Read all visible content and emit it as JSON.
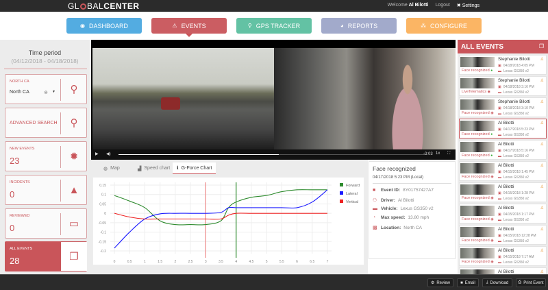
{
  "topbar": {
    "logo": "GLOBALCENTER",
    "logo_a": "GL",
    "logo_b": "BAL",
    "logo_c": "CENTER",
    "welcome": "Welcome",
    "user": "Al Bilotti",
    "logout": "Logout",
    "settings": "Settings"
  },
  "nav": [
    {
      "label": "DASHBOARD",
      "color": "#4aa8e0",
      "icon": "dashboard-icon"
    },
    {
      "label": "EVENTS",
      "color": "#c9555a",
      "icon": "warning-icon"
    },
    {
      "label": "GPS TRACKER",
      "color": "#5bbfa0",
      "icon": "map-pin-icon"
    },
    {
      "label": "REPORTS",
      "color": "#9ea6c9",
      "icon": "pie-chart-icon"
    },
    {
      "label": "CONFIGURE",
      "color": "#fbb25c",
      "icon": "sitemap-icon"
    }
  ],
  "left": {
    "time_title": "Time period",
    "time_range": "(04/12/2018 - 04/18/2018)",
    "region": {
      "label": "NORTH CA",
      "value": "North CA"
    },
    "advanced_search": "ADVANCED SEARCH",
    "new_events": {
      "label": "NEW EVENTS",
      "value": "23"
    },
    "incidents": {
      "label": "INCIDENTS",
      "value": "0"
    },
    "reviewed": {
      "label": "REVIEWED",
      "value": "0"
    },
    "all_events": {
      "label": "ALL EVENTS",
      "value": "28"
    }
  },
  "video": {
    "time": "-0:03",
    "speed": "1x",
    "progress": 0.52
  },
  "tabs": [
    {
      "label": "Map"
    },
    {
      "label": "Speed chart"
    },
    {
      "label": "G-Force Chart",
      "active": true
    }
  ],
  "chart_data": {
    "type": "line",
    "x": [
      0,
      0.5,
      1,
      1.5,
      2,
      2.5,
      3,
      3.5,
      3.75,
      4,
      4.5,
      5,
      5.5,
      6,
      6.5,
      7
    ],
    "xticks": [
      "0",
      "0.5",
      "1",
      "1.5",
      "2",
      "2.5",
      "3",
      "3.5",
      "4",
      "4.5",
      "5",
      "5.5",
      "6",
      "6.5",
      "7"
    ],
    "yticks": [
      "0.15",
      "0.1",
      "0.05",
      "0",
      "-0.05",
      "-0.1",
      "-0.15",
      "-0.2"
    ],
    "xlim": [
      0,
      7
    ],
    "ylim": [
      -0.2,
      0.15
    ],
    "grid": true,
    "legend": "right",
    "series": [
      {
        "name": "Forward",
        "color": "#2e8b2e",
        "values": [
          0.095,
          0.065,
          0.03,
          -0.04,
          -0.06,
          -0.06,
          -0.06,
          -0.04,
          0.03,
          0.06,
          0.085,
          0.095,
          0.115,
          0.125,
          0.125,
          0.125
        ]
      },
      {
        "name": "Lateral",
        "color": "#1a1aff",
        "values": [
          -0.185,
          -0.1,
          -0.03,
          -0.003,
          0,
          0,
          0,
          0.005,
          0.03,
          0.03,
          0.03,
          0.03,
          0.03,
          0.03,
          0.06,
          0.125
        ]
      },
      {
        "name": "Vertical",
        "color": "#ee2222",
        "values": [
          0,
          -0.02,
          -0.03,
          -0.03,
          -0.03,
          -0.03,
          -0.03,
          -0.03,
          -0.01,
          0,
          0,
          0,
          0,
          0,
          0,
          0
        ]
      }
    ],
    "markers": [
      {
        "x": 3,
        "color": "#e88"
      },
      {
        "x": 4,
        "color": "#2e8b2e"
      }
    ]
  },
  "info": {
    "title": "Face recognized",
    "datetime": "04/17/2018 5:23 PM (Local)",
    "rows": [
      {
        "key": "Event ID:",
        "value": "8Y01757427A7",
        "icon": "folder-icon"
      },
      {
        "key": "Driver:",
        "value": "Al Bilotti",
        "icon": "user-icon"
      },
      {
        "key": "Vehicle:",
        "value": "Lexus GS350 v2",
        "icon": "car-icon"
      },
      {
        "key": "Max speed:",
        "value": "13.80 mph",
        "icon": "speedometer-icon"
      },
      {
        "key": "Location:",
        "value": "North CA",
        "icon": "map-icon"
      }
    ]
  },
  "events": {
    "title": "ALL EVENTS",
    "items": [
      {
        "name": "Stephanie Bilotti",
        "date": "04/18/2018 4:05 PM",
        "vehicle": "Lexus GS350 v2",
        "tag": "Face recognized",
        "status": "green"
      },
      {
        "name": "Stephanie Bilotti",
        "date": "04/18/2018 3:16 PM",
        "vehicle": "Lexus GS350 v2",
        "tag": "LiveTelematics",
        "status": "red"
      },
      {
        "name": "Stephanie Bilotti",
        "date": "04/18/2018 3:10 PM",
        "vehicle": "Lexus GS350 v2",
        "tag": "Face recognized",
        "status": "red"
      },
      {
        "name": "Al Bilotti",
        "date": "04/17/2018 5:23 PM",
        "vehicle": "Lexus GS350 v2",
        "tag": "Face recognized",
        "status": "green"
      },
      {
        "name": "Al Bilotti",
        "date": "04/17/2018 5:16 PM",
        "vehicle": "Lexus GS350 v2",
        "tag": "Face recognized",
        "status": "green"
      },
      {
        "name": "Al Bilotti",
        "date": "04/15/2018 1:45 PM",
        "vehicle": "Lexus GS350 v2",
        "tag": "Face recognized",
        "status": "red"
      },
      {
        "name": "Al Bilotti",
        "date": "04/15/2018 1:28 PM",
        "vehicle": "Lexus GS350 v2",
        "tag": "Face recognized",
        "status": "red"
      },
      {
        "name": "Al Bilotti",
        "date": "04/15/2018 1:17 PM",
        "vehicle": "Lexus GS350 v2",
        "tag": "Face recognized",
        "status": "red"
      },
      {
        "name": "Al Bilotti",
        "date": "04/15/2018 12:28 PM",
        "vehicle": "Lexus GS350 v2",
        "tag": "Face recognized",
        "status": "red"
      },
      {
        "name": "Al Bilotti",
        "date": "04/15/2018 7:17 AM",
        "vehicle": "Lexus GS350 v2",
        "tag": "Face recognized",
        "status": "red"
      },
      {
        "name": "Al Bilotti",
        "date": "",
        "vehicle": "",
        "tag": "",
        "status": ""
      }
    ]
  },
  "bottom": {
    "review": "Review",
    "email": "Email",
    "download": "Download",
    "print": "Print Event"
  }
}
